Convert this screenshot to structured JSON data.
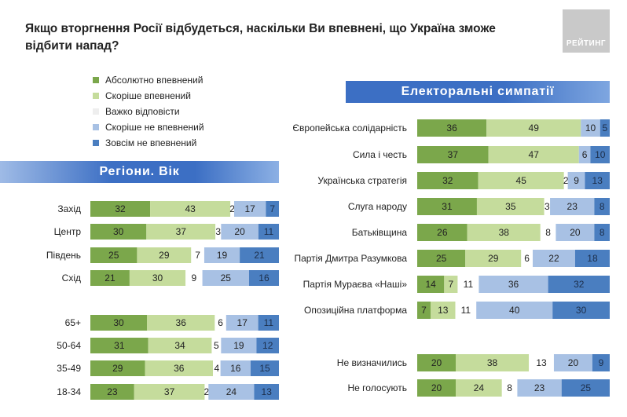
{
  "title": "Якщо вторгнення Росії відбудеться, наскільки Ви впевнені, що Україна зможе відбити напад?",
  "logo_text": "РЕЙТИНГ",
  "colors": {
    "absolutely_confident": "#7ba74b",
    "rather_confident": "#c5dc9c",
    "hard_to_say": "#ffffff",
    "rather_not_confident": "#a8c1e4",
    "not_confident_at_all": "#4a7ec0"
  },
  "legend": [
    {
      "label": "Абсолютно впевнений",
      "color": "#7ba74b"
    },
    {
      "label": "Скоріше впевнений",
      "color": "#c5dc9c"
    },
    {
      "label": "Важко відповісти",
      "color": "#eeeeee"
    },
    {
      "label": "Скоріше не впевнений",
      "color": "#a8c1e4"
    },
    {
      "label": "Зовсім не впевнений",
      "color": "#4a7ec0"
    }
  ],
  "banners": {
    "regions": "Регіони. Вік",
    "electoral": "Електоральні симпатії"
  },
  "chart_data": [
    {
      "type": "bar",
      "stacked": true,
      "orientation": "horizontal",
      "categories": [
        "Захід",
        "Центр",
        "Південь",
        "Схід",
        "65+",
        "50-64",
        "35-49",
        "18-34"
      ],
      "series": [
        {
          "name": "Абсолютно впевнений",
          "values": [
            32,
            30,
            25,
            21,
            30,
            31,
            29,
            23
          ]
        },
        {
          "name": "Скоріше впевнений",
          "values": [
            43,
            37,
            29,
            30,
            36,
            34,
            36,
            37
          ]
        },
        {
          "name": "Важко відповісти",
          "values": [
            2,
            3,
            7,
            9,
            6,
            5,
            4,
            2
          ]
        },
        {
          "name": "Скоріше не впевнений",
          "values": [
            17,
            20,
            19,
            25,
            17,
            19,
            16,
            24
          ]
        },
        {
          "name": "Зовсім не впевнений",
          "values": [
            7,
            11,
            21,
            16,
            11,
            12,
            15,
            13
          ]
        }
      ]
    },
    {
      "type": "bar",
      "stacked": true,
      "orientation": "horizontal",
      "categories": [
        "Європейська солідарність",
        "Сила і честь",
        "Українська стратегія",
        "Слуга народу",
        "Батьківщина",
        "Партія Дмитра Разумкова",
        "Партія Мураєва «Наші»",
        "Опозиційна платформа",
        "Не визначились",
        "Не голосують"
      ],
      "series": [
        {
          "name": "Абсолютно впевнений",
          "values": [
            36,
            37,
            32,
            31,
            26,
            25,
            14,
            7,
            20,
            20
          ]
        },
        {
          "name": "Скоріше впевнений",
          "values": [
            49,
            47,
            45,
            35,
            38,
            29,
            7,
            13,
            38,
            24
          ]
        },
        {
          "name": "Важко відповісти",
          "values": [
            0,
            0,
            2,
            3,
            8,
            6,
            11,
            11,
            13,
            8
          ]
        },
        {
          "name": "Скоріше не впевнений",
          "values": [
            10,
            6,
            9,
            23,
            20,
            22,
            36,
            40,
            20,
            23
          ]
        },
        {
          "name": "Зовсім не впевнений",
          "values": [
            5,
            10,
            13,
            8,
            8,
            18,
            32,
            30,
            9,
            25
          ]
        }
      ]
    }
  ]
}
